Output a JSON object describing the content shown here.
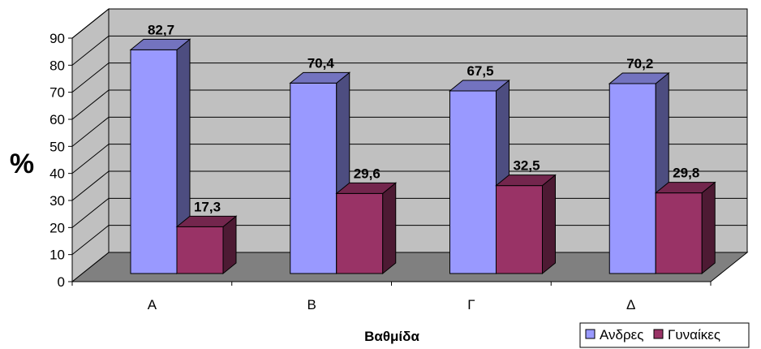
{
  "chart_data": {
    "type": "bar",
    "view": "3d-clustered-column",
    "categories": [
      "Α",
      "Β",
      "Γ",
      "Δ"
    ],
    "series": [
      {
        "name": "Ανδρες",
        "values": [
          82.7,
          70.4,
          67.5,
          70.2
        ],
        "color": "#9999FF"
      },
      {
        "name": "Γυναίκες",
        "values": [
          17.3,
          29.6,
          32.5,
          29.8
        ],
        "color": "#993366"
      }
    ],
    "data_labels": [
      [
        "82,7",
        "70,4",
        "67,5",
        "70,2"
      ],
      [
        "17,3",
        "29,6",
        "32,5",
        "29,8"
      ]
    ],
    "xlabel": "Βαθμίδα",
    "ylabel": "%",
    "ylim": [
      0,
      90
    ],
    "yticks": [
      "0",
      "10",
      "20",
      "30",
      "40",
      "50",
      "60",
      "70",
      "80",
      "90"
    ],
    "grid": true,
    "legend_position": "bottom-right",
    "wall_color": "#C0C0C0",
    "floor_color": "#808080"
  }
}
